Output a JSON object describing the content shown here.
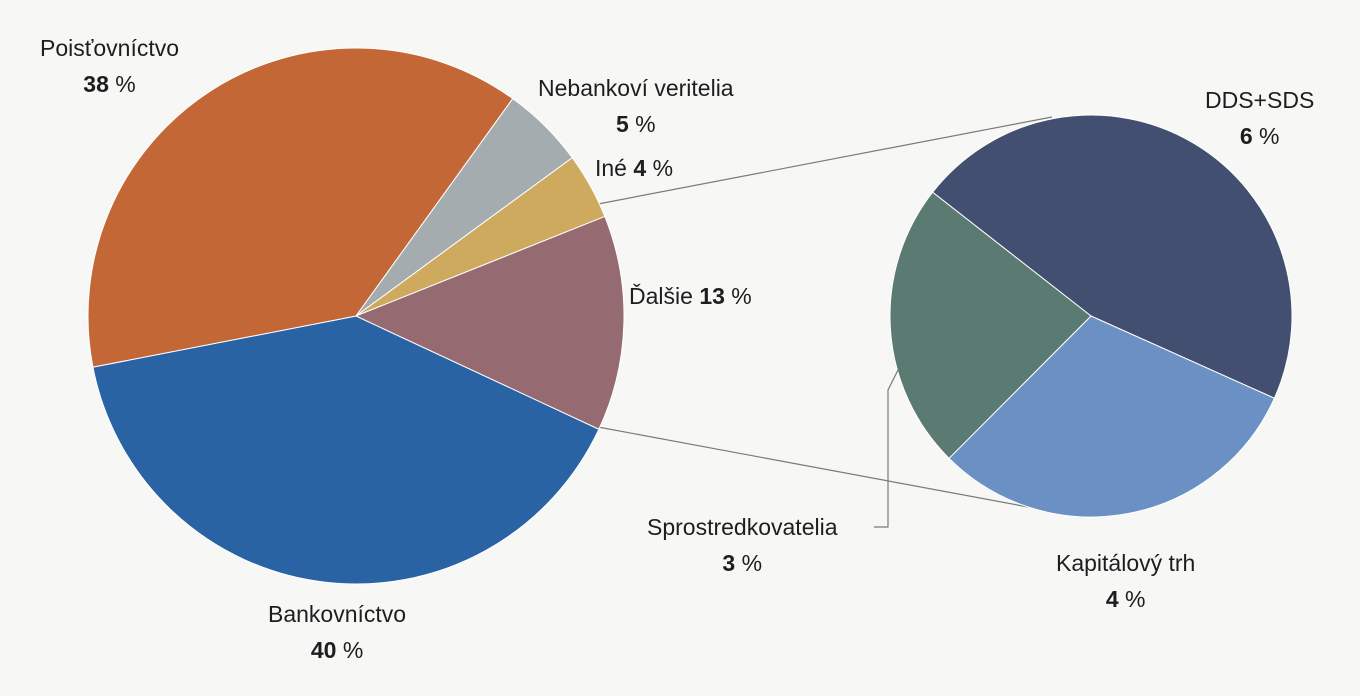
{
  "chart_data": {
    "type": "pie",
    "main": {
      "slices": [
        {
          "name": "Bankovníctvo",
          "value": 40,
          "color": "#2a63a4"
        },
        {
          "name": "Poisťovníctvo",
          "value": 38,
          "color": "#c46737"
        },
        {
          "name": "Nebankoví veritelia",
          "value": 5,
          "color": "#a5acb0"
        },
        {
          "name": "Iné",
          "value": 4,
          "color": "#cdaa5e"
        },
        {
          "name": "Ďalšie",
          "value": 13,
          "color": "#956a71"
        }
      ]
    },
    "breakdown": {
      "of": "Ďalšie",
      "slices": [
        {
          "name": "DDS+SDS",
          "value": 6,
          "color": "#434f70"
        },
        {
          "name": "Kapitálový trh",
          "value": 4,
          "color": "#6a90c4"
        },
        {
          "name": "Sprostredkovatelia",
          "value": 3,
          "color": "#5b7a72"
        }
      ]
    },
    "value_suffix": "%"
  }
}
